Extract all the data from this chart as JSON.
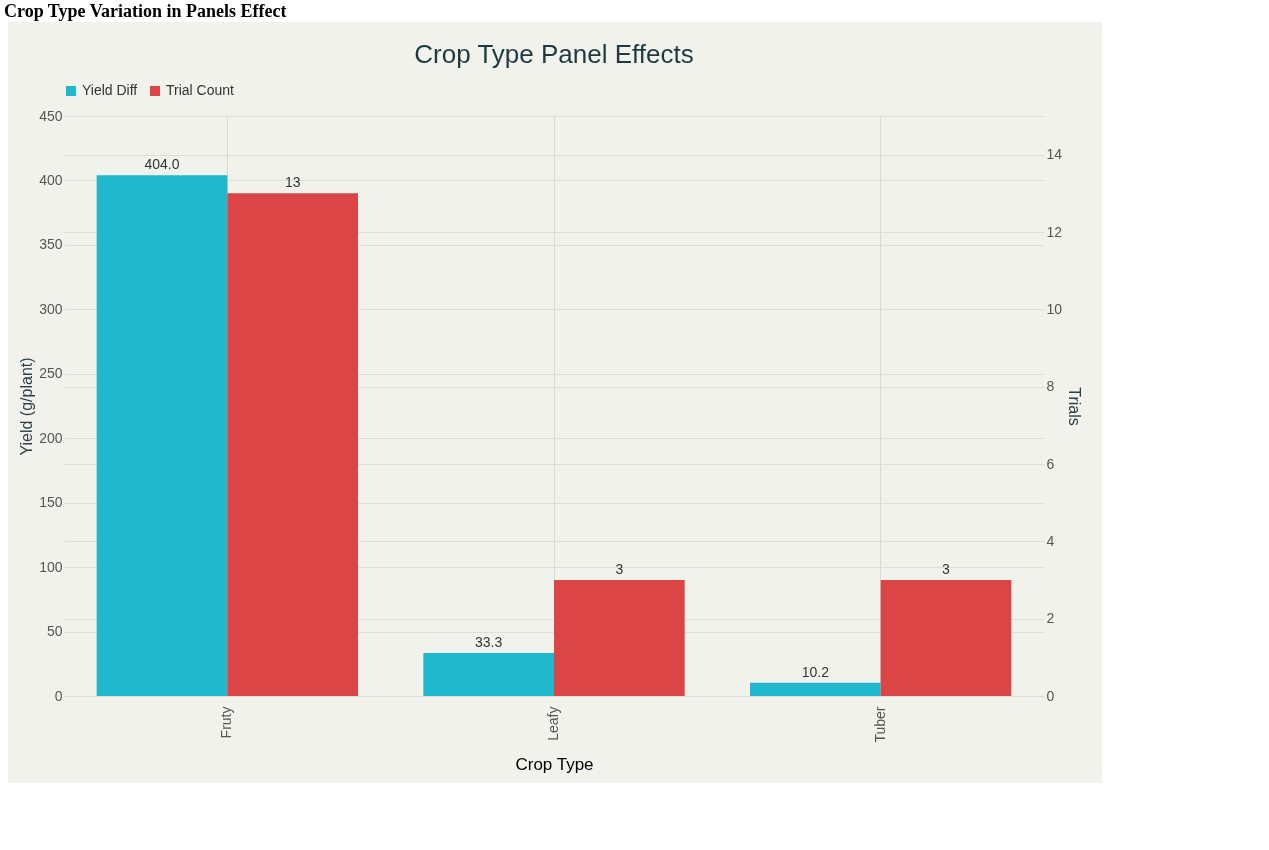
{
  "chart_data": {
    "type": "bar",
    "title": "Crop Type Panel Effects",
    "xlabel": "Crop Type",
    "ylabel": "Yield (g/plant)",
    "y2label": "Trials",
    "annotations": [
      "Crop Type Variation in Panels Effect"
    ],
    "categories": [
      "Fruty",
      "Leafy",
      "Tuber"
    ],
    "series": [
      {
        "name": "Yield Diff",
        "color": "#1fb8cd",
        "values": [
          404.0,
          33.3,
          10.2
        ],
        "value_labels": [
          "404.0",
          "33.3",
          "10.2"
        ]
      },
      {
        "name": "Trial Count",
        "color": "#db4545",
        "values": [
          13,
          3,
          3
        ],
        "value_labels": [
          "13",
          "3",
          "3"
        ],
        "axis": "y2"
      }
    ],
    "ylim": [
      0,
      450
    ],
    "yticks": [
      0,
      50,
      100,
      150,
      200,
      250,
      300,
      350,
      400,
      450
    ],
    "y2lim": [
      0,
      15
    ],
    "y2ticks": [
      0,
      2,
      4,
      6,
      8,
      10,
      12,
      14
    ],
    "grid": true,
    "legend": "top"
  }
}
